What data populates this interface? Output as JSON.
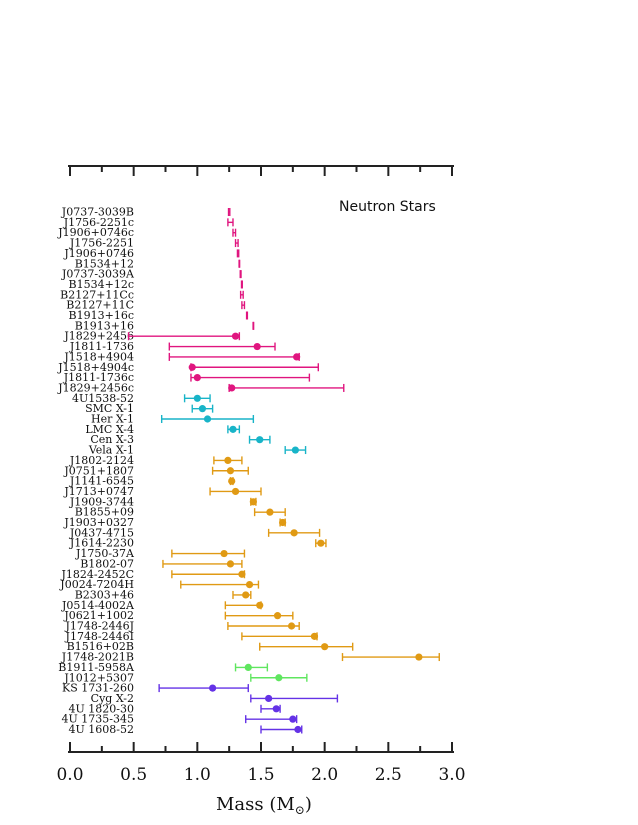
{
  "chart_data": {
    "type": "scatter",
    "title": "Neutron Stars",
    "xlabel": "Mass (M",
    "xlabel_sub": "⊙",
    "xlabel_close": ")",
    "xlim": [
      0.0,
      3.0
    ],
    "x_ticks": [
      "0.0",
      "0.5",
      "1.0",
      "1.5",
      "2.0",
      "2.5",
      "3.0"
    ],
    "grid": false,
    "colors": {
      "magenta": "#e0157f",
      "cyan": "#18b4c8",
      "orange": "#e09a14",
      "green": "#5fe65f",
      "purple": "#6432e6"
    },
    "points": [
      {
        "name": "J0737-3039B",
        "x": 1.25,
        "lo": 1.245,
        "hi": 1.255,
        "color": "magenta",
        "marker": "bar"
      },
      {
        "name": "J1756-2251c",
        "x": 1.26,
        "lo": 1.24,
        "hi": 1.28,
        "color": "magenta",
        "marker": "bar"
      },
      {
        "name": "J1906+0746c",
        "x": 1.29,
        "lo": 1.28,
        "hi": 1.3,
        "color": "magenta",
        "marker": "bar"
      },
      {
        "name": "J1756-2251",
        "x": 1.31,
        "lo": 1.3,
        "hi": 1.32,
        "color": "magenta",
        "marker": "bar"
      },
      {
        "name": "J1906+0746",
        "x": 1.32,
        "lo": 1.315,
        "hi": 1.325,
        "color": "magenta",
        "marker": "bar"
      },
      {
        "name": "B1534+12",
        "x": 1.33,
        "lo": 1.328,
        "hi": 1.332,
        "color": "magenta",
        "marker": "bar"
      },
      {
        "name": "J0737-3039A",
        "x": 1.34,
        "lo": 1.337,
        "hi": 1.343,
        "color": "magenta",
        "marker": "bar"
      },
      {
        "name": "B1534+12c",
        "x": 1.35,
        "lo": 1.347,
        "hi": 1.353,
        "color": "magenta",
        "marker": "bar"
      },
      {
        "name": "B2127+11Cc",
        "x": 1.35,
        "lo": 1.34,
        "hi": 1.36,
        "color": "magenta",
        "marker": "bar"
      },
      {
        "name": "B2127+11C",
        "x": 1.36,
        "lo": 1.35,
        "hi": 1.37,
        "color": "magenta",
        "marker": "bar"
      },
      {
        "name": "B1913+16c",
        "x": 1.39,
        "lo": 1.387,
        "hi": 1.393,
        "color": "magenta",
        "marker": "bar"
      },
      {
        "name": "B1913+16",
        "x": 1.44,
        "lo": 1.438,
        "hi": 1.442,
        "color": "magenta",
        "marker": "bar"
      },
      {
        "name": "J1829+2456",
        "x": 1.3,
        "lo": 0.46,
        "hi": 1.33,
        "color": "magenta",
        "marker": "dot"
      },
      {
        "name": "J1811-1736",
        "x": 1.47,
        "lo": 0.78,
        "hi": 1.61,
        "color": "magenta",
        "marker": "dot"
      },
      {
        "name": "J1518+4904",
        "x": 1.78,
        "lo": 0.78,
        "hi": 1.8,
        "color": "magenta",
        "marker": "dot"
      },
      {
        "name": "J1518+4904c",
        "x": 0.96,
        "lo": 0.95,
        "hi": 1.95,
        "color": "magenta",
        "marker": "dot"
      },
      {
        "name": "J1811-1736c",
        "x": 1.0,
        "lo": 0.95,
        "hi": 1.88,
        "color": "magenta",
        "marker": "dot"
      },
      {
        "name": "J1829+2456c",
        "x": 1.27,
        "lo": 1.25,
        "hi": 2.15,
        "color": "magenta",
        "marker": "dot"
      },
      {
        "name": "4U1538-52",
        "x": 1.0,
        "lo": 0.9,
        "hi": 1.1,
        "color": "cyan",
        "marker": "dot"
      },
      {
        "name": "SMC X-1",
        "x": 1.04,
        "lo": 0.96,
        "hi": 1.12,
        "color": "cyan",
        "marker": "dot"
      },
      {
        "name": "Her X-1",
        "x": 1.08,
        "lo": 0.72,
        "hi": 1.44,
        "color": "cyan",
        "marker": "dot"
      },
      {
        "name": "LMC X-4",
        "x": 1.28,
        "lo": 1.24,
        "hi": 1.33,
        "color": "cyan",
        "marker": "dot"
      },
      {
        "name": "Cen X-3",
        "x": 1.49,
        "lo": 1.41,
        "hi": 1.57,
        "color": "cyan",
        "marker": "dot"
      },
      {
        "name": "Vela X-1",
        "x": 1.77,
        "lo": 1.69,
        "hi": 1.85,
        "color": "cyan",
        "marker": "dot"
      },
      {
        "name": "J1802-2124",
        "x": 1.24,
        "lo": 1.13,
        "hi": 1.35,
        "color": "orange",
        "marker": "dot"
      },
      {
        "name": "J0751+1807",
        "x": 1.26,
        "lo": 1.12,
        "hi": 1.4,
        "color": "orange",
        "marker": "dot"
      },
      {
        "name": "J1141-6545",
        "x": 1.27,
        "lo": 1.26,
        "hi": 1.28,
        "color": "orange",
        "marker": "dot"
      },
      {
        "name": "J1713+0747",
        "x": 1.3,
        "lo": 1.1,
        "hi": 1.5,
        "color": "orange",
        "marker": "dot"
      },
      {
        "name": "J1909-3744",
        "x": 1.44,
        "lo": 1.42,
        "hi": 1.46,
        "color": "orange",
        "marker": "dot"
      },
      {
        "name": "B1855+09",
        "x": 1.57,
        "lo": 1.45,
        "hi": 1.69,
        "color": "orange",
        "marker": "dot"
      },
      {
        "name": "J1903+0327",
        "x": 1.67,
        "lo": 1.65,
        "hi": 1.69,
        "color": "orange",
        "marker": "dot"
      },
      {
        "name": "J0437-4715",
        "x": 1.76,
        "lo": 1.56,
        "hi": 1.96,
        "color": "orange",
        "marker": "dot"
      },
      {
        "name": "J1614-2230",
        "x": 1.97,
        "lo": 1.93,
        "hi": 2.01,
        "color": "orange",
        "marker": "dot"
      },
      {
        "name": "J1750-37A",
        "x": 1.21,
        "lo": 0.8,
        "hi": 1.37,
        "color": "orange",
        "marker": "dot"
      },
      {
        "name": "B1802-07",
        "x": 1.26,
        "lo": 0.73,
        "hi": 1.35,
        "color": "orange",
        "marker": "dot"
      },
      {
        "name": "J1824-2452C",
        "x": 1.35,
        "lo": 0.8,
        "hi": 1.37,
        "color": "orange",
        "marker": "dot"
      },
      {
        "name": "J0024-7204H",
        "x": 1.41,
        "lo": 0.87,
        "hi": 1.48,
        "color": "orange",
        "marker": "dot"
      },
      {
        "name": "B2303+46",
        "x": 1.38,
        "lo": 1.28,
        "hi": 1.42,
        "color": "orange",
        "marker": "dot"
      },
      {
        "name": "J0514-4002A",
        "x": 1.49,
        "lo": 1.22,
        "hi": 1.5,
        "color": "orange",
        "marker": "dot"
      },
      {
        "name": "J0621+1002",
        "x": 1.63,
        "lo": 1.22,
        "hi": 1.75,
        "color": "orange",
        "marker": "dot"
      },
      {
        "name": "J1748-2446J",
        "x": 1.74,
        "lo": 1.24,
        "hi": 1.8,
        "color": "orange",
        "marker": "dot"
      },
      {
        "name": "J1748-2446I",
        "x": 1.92,
        "lo": 1.35,
        "hi": 1.94,
        "color": "orange",
        "marker": "dot"
      },
      {
        "name": "B1516+02B",
        "x": 2.0,
        "lo": 1.49,
        "hi": 2.22,
        "color": "orange",
        "marker": "dot"
      },
      {
        "name": "J1748-2021B",
        "x": 2.74,
        "lo": 2.14,
        "hi": 2.9,
        "color": "orange",
        "marker": "dot"
      },
      {
        "name": "B1911-5958A",
        "x": 1.4,
        "lo": 1.3,
        "hi": 1.55,
        "color": "green",
        "marker": "dot"
      },
      {
        "name": "J1012+5307",
        "x": 1.64,
        "lo": 1.42,
        "hi": 1.86,
        "color": "green",
        "marker": "dot"
      },
      {
        "name": "KS 1731-260",
        "x": 1.12,
        "lo": 0.7,
        "hi": 1.4,
        "color": "purple",
        "marker": "dot"
      },
      {
        "name": "Cyg X-2",
        "x": 1.56,
        "lo": 1.42,
        "hi": 2.1,
        "color": "purple",
        "marker": "dot"
      },
      {
        "name": "4U 1820-30",
        "x": 1.62,
        "lo": 1.5,
        "hi": 1.65,
        "color": "purple",
        "marker": "dot"
      },
      {
        "name": "4U 1735-345",
        "x": 1.75,
        "lo": 1.38,
        "hi": 1.78,
        "color": "purple",
        "marker": "dot"
      },
      {
        "name": "4U 1608-52",
        "x": 1.79,
        "lo": 1.5,
        "hi": 1.82,
        "color": "purple",
        "marker": "dot"
      }
    ]
  }
}
